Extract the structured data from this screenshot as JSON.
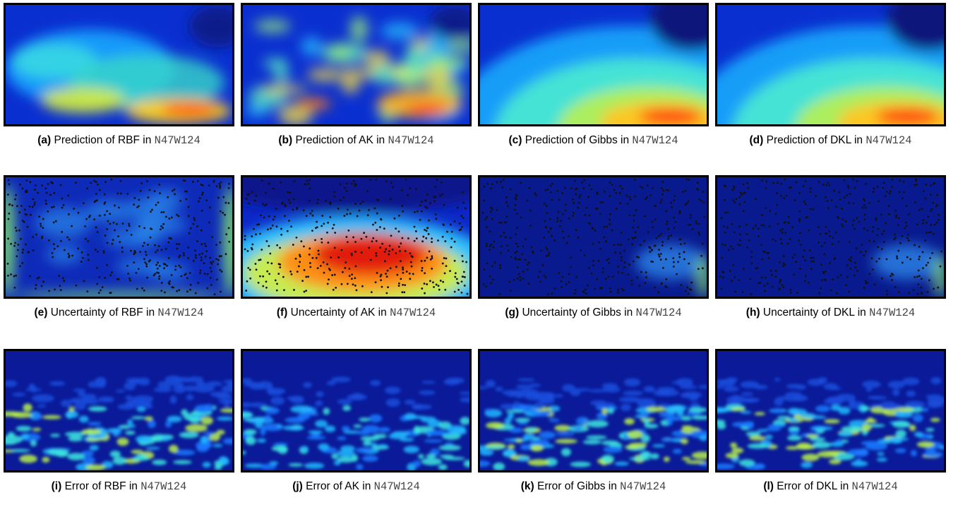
{
  "figure": {
    "panels": [
      {
        "label": "(a)",
        "text": "Prediction of RBF in ",
        "code": "N47W124",
        "kind": "prediction-smooth",
        "points": false
      },
      {
        "label": "(b)",
        "text": "Prediction of AK in ",
        "code": "N47W124",
        "kind": "prediction-patchy",
        "points": false
      },
      {
        "label": "(c)",
        "text": "Prediction of Gibbs in ",
        "code": "N47W124",
        "kind": "prediction-arc",
        "points": false
      },
      {
        "label": "(d)",
        "text": "Prediction of DKL in ",
        "code": "N47W124",
        "kind": "prediction-arc",
        "points": false
      },
      {
        "label": "(e)",
        "text": "Uncertainty of RBF in ",
        "code": "N47W124",
        "kind": "uncertainty-low-edges",
        "points": true
      },
      {
        "label": "(f)",
        "text": "Uncertainty of AK in ",
        "code": "N47W124",
        "kind": "uncertainty-high",
        "points": true
      },
      {
        "label": "(g)",
        "text": "Uncertainty of Gibbs in ",
        "code": "N47W124",
        "kind": "uncertainty-dark",
        "points": true
      },
      {
        "label": "(h)",
        "text": "Uncertainty of DKL in ",
        "code": "N47W124",
        "kind": "uncertainty-dark",
        "points": true
      },
      {
        "label": "(i)",
        "text": "Error of RBF in ",
        "code": "N47W124",
        "kind": "error",
        "points": false
      },
      {
        "label": "(j)",
        "text": "Error of AK in ",
        "code": "N47W124",
        "kind": "error-low",
        "points": false
      },
      {
        "label": "(k)",
        "text": "Error of Gibbs in ",
        "code": "N47W124",
        "kind": "error",
        "points": false
      },
      {
        "label": "(l)",
        "text": "Error of DKL in ",
        "code": "N47W124",
        "kind": "error",
        "points": false
      }
    ],
    "colormap": "jet"
  }
}
